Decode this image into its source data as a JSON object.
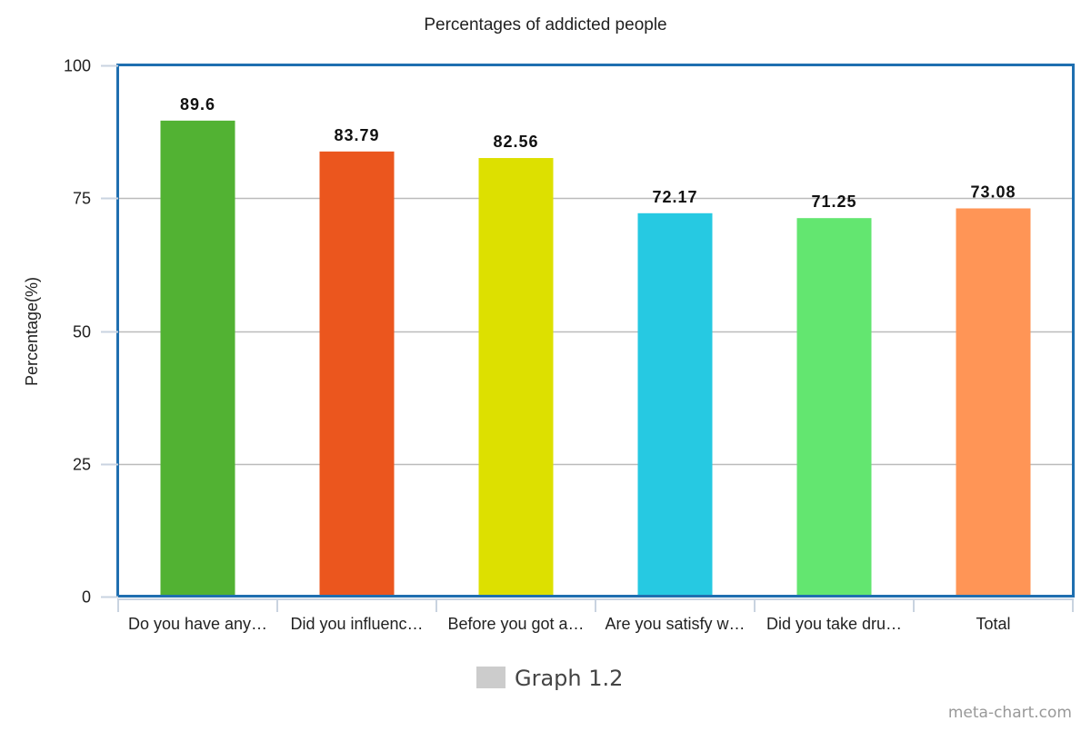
{
  "chart_data": {
    "type": "bar",
    "title": "Percentages of addicted people",
    "xlabel": "",
    "ylabel": "Percentage(%)",
    "ylim": [
      0,
      100
    ],
    "yticks": [
      0,
      25,
      50,
      75,
      100
    ],
    "grid": true,
    "categories": [
      "Do you have any…",
      "Did you influenc…",
      "Before you got a…",
      "Are you satisfy w…",
      "Did you take dru…",
      "Total"
    ],
    "values": [
      89.6,
      83.79,
      82.56,
      72.17,
      71.25,
      73.08
    ],
    "value_labels": [
      "89.6",
      "83.79",
      "82.56",
      "72.17",
      "71.25",
      "73.08"
    ],
    "bar_colors": [
      "#52b233",
      "#eb561e",
      "#dde000",
      "#26c9e2",
      "#63e670",
      "#ff9556"
    ],
    "legend": {
      "position": "bottom",
      "entries": [
        {
          "label": "Graph 1.2",
          "color": "#cccccc"
        }
      ]
    },
    "frame_color": "#1f6fb0",
    "grid_color": "#bbbbbb",
    "watermark": "meta-chart.com"
  }
}
